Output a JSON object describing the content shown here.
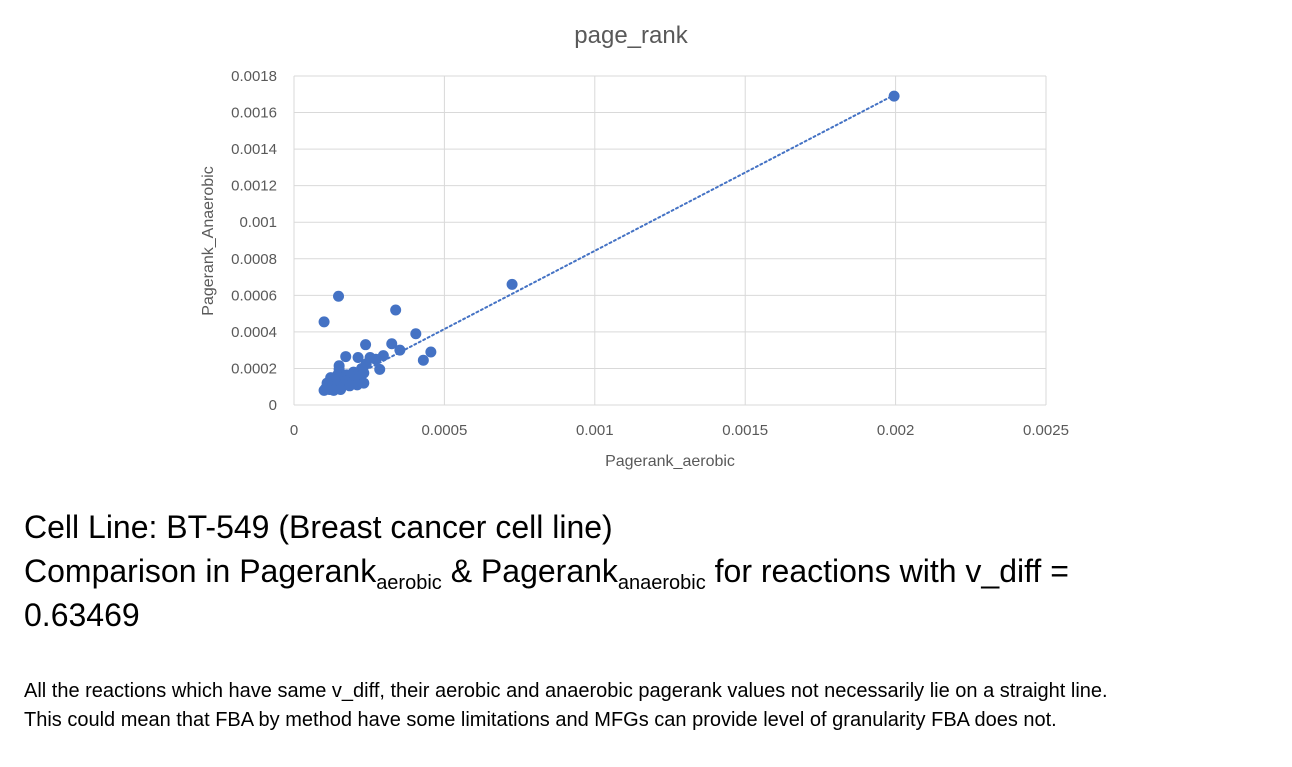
{
  "chart_data": {
    "type": "scatter",
    "title": "page_rank",
    "xlabel": "Pagerank_aerobic",
    "ylabel": "Pagerank_Anaerobic",
    "xlim": [
      0,
      0.0025
    ],
    "ylim": [
      0,
      0.0018
    ],
    "x_ticks": [
      "0",
      "0.0005",
      "0.001",
      "0.0015",
      "0.002",
      "0.0025"
    ],
    "y_ticks": [
      "0",
      "0.0002",
      "0.0004",
      "0.0006",
      "0.0008",
      "0.001",
      "0.0012",
      "0.0014",
      "0.0016",
      "0.0018"
    ],
    "grid": true,
    "legend": "none",
    "marker_color": "#4472c4",
    "trendline": {
      "style": "dotted",
      "color": "#4472c4",
      "from": [
        0.00012,
        9e-05
      ],
      "to": [
        0.002,
        0.0017
      ]
    },
    "points": [
      {
        "x": 0.001995,
        "y": 0.00169
      },
      {
        "x": 0.000725,
        "y": 0.00066
      },
      {
        "x": 0.000148,
        "y": 0.000595
      },
      {
        "x": 0.000338,
        "y": 0.00052
      },
      {
        "x": 0.0001,
        "y": 0.000455
      },
      {
        "x": 0.000405,
        "y": 0.00039
      },
      {
        "x": 0.000325,
        "y": 0.000335
      },
      {
        "x": 0.000238,
        "y": 0.00033
      },
      {
        "x": 0.000455,
        "y": 0.00029
      },
      {
        "x": 0.000352,
        "y": 0.0003
      },
      {
        "x": 0.000297,
        "y": 0.00027
      },
      {
        "x": 0.000172,
        "y": 0.000265
      },
      {
        "x": 0.000213,
        "y": 0.00026
      },
      {
        "x": 0.000253,
        "y": 0.00026
      },
      {
        "x": 0.000272,
        "y": 0.00025
      },
      {
        "x": 0.00043,
        "y": 0.000245
      },
      {
        "x": 0.00024,
        "y": 0.000225
      },
      {
        "x": 0.00015,
        "y": 0.000215
      },
      {
        "x": 0.000225,
        "y": 0.0002
      },
      {
        "x": 0.000285,
        "y": 0.000195
      },
      {
        "x": 0.00015,
        "y": 0.000195
      },
      {
        "x": 0.000198,
        "y": 0.00018
      },
      {
        "x": 0.000232,
        "y": 0.000175
      },
      {
        "x": 0.000145,
        "y": 0.000165
      },
      {
        "x": 0.000175,
        "y": 0.000165
      },
      {
        "x": 0.000205,
        "y": 0.000155
      },
      {
        "x": 0.000122,
        "y": 0.00015
      },
      {
        "x": 0.00016,
        "y": 0.00014
      },
      {
        "x": 0.00019,
        "y": 0.000145
      },
      {
        "x": 0.000135,
        "y": 0.000135
      },
      {
        "x": 0.000172,
        "y": 0.00013
      },
      {
        "x": 0.000215,
        "y": 0.000125
      },
      {
        "x": 0.000232,
        "y": 0.00012
      },
      {
        "x": 0.00021,
        "y": 0.00011
      },
      {
        "x": 0.00011,
        "y": 0.00012
      },
      {
        "x": 0.000142,
        "y": 0.000115
      },
      {
        "x": 0.000165,
        "y": 0.00011
      },
      {
        "x": 0.000185,
        "y": 0.000105
      },
      {
        "x": 0.000125,
        "y": 0.0001
      },
      {
        "x": 0.000152,
        "y": 9.5e-05
      },
      {
        "x": 0.000105,
        "y": 9e-05
      },
      {
        "x": 0.000118,
        "y": 8.5e-05
      },
      {
        "x": 0.000132,
        "y": 8e-05
      },
      {
        "x": 0.000155,
        "y": 8.5e-05
      },
      {
        "x": 0.0001,
        "y": 8e-05
      }
    ]
  },
  "caption": {
    "line1": "Cell Line: BT-549 (Breast cancer cell line)",
    "line2_prefix": "Comparison in Pagerank",
    "line2_sub1": "aerobic",
    "line2_mid": " & Pagerank",
    "line2_sub2": "anaerobic",
    "line2_suffix": " for reactions with v_diff =",
    "line3": "0.63469"
  },
  "note": {
    "line1": "All the reactions which have same v_diff, their aerobic and anaerobic pagerank values not necessarily lie on a straight line.",
    "line2": "This could mean that FBA by method have some limitations and MFGs can provide level of granularity FBA does not."
  }
}
